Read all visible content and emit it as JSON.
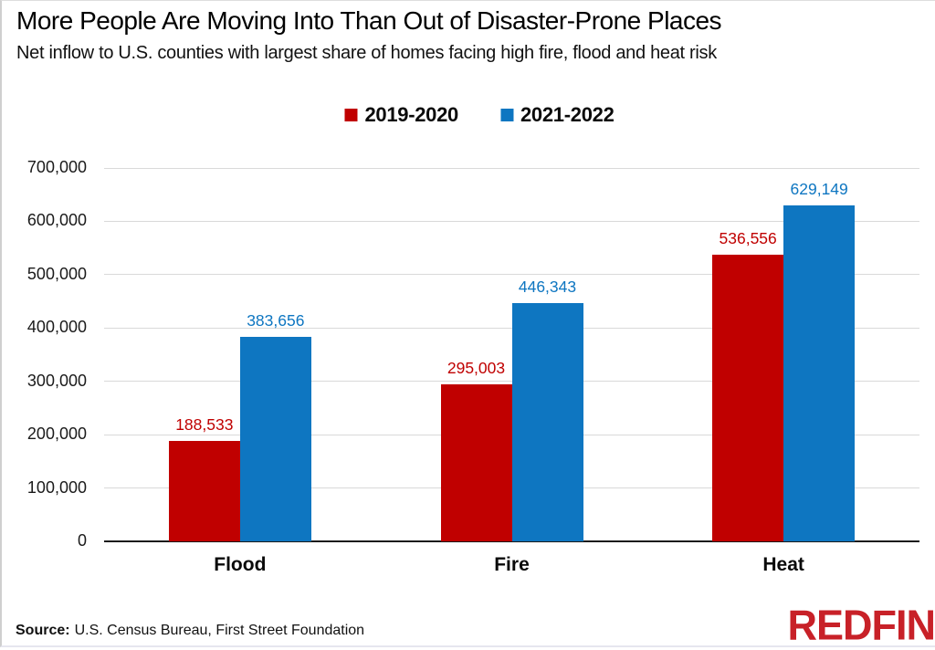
{
  "header": {
    "title": "More People Are Moving Into Than Out of Disaster-Prone Places",
    "subtitle": "Net inflow to U.S. counties with largest share of homes facing high fire, flood and heat risk"
  },
  "legend": {
    "items": [
      {
        "label": "2019-2020",
        "color": "#c00000"
      },
      {
        "label": "2021-2022",
        "color": "#0e76c1"
      }
    ]
  },
  "chart_data": {
    "type": "bar",
    "title": "More People Are Moving Into Than Out of Disaster-Prone Places",
    "categories": [
      "Flood",
      "Fire",
      "Heat"
    ],
    "series": [
      {
        "name": "2019-2020",
        "color": "#c00000",
        "values": [
          188533,
          295003,
          536556
        ],
        "value_labels": [
          "188,533",
          "295,003",
          "536,556"
        ]
      },
      {
        "name": "2021-2022",
        "color": "#0e76c1",
        "values": [
          383656,
          446343,
          629149
        ],
        "value_labels": [
          "383,656",
          "446,343",
          "629,149"
        ]
      }
    ],
    "xlabel": "",
    "ylabel": "",
    "ylim": [
      0,
      700000
    ],
    "ytick_step": 100000,
    "ytick_labels": [
      "0",
      "100,000",
      "200,000",
      "300,000",
      "400,000",
      "500,000",
      "600,000",
      "700,000"
    ],
    "grid": true,
    "legend_position": "top-center"
  },
  "footer": {
    "source_label": "Source:",
    "source_text": "U.S. Census Bureau, First Street Foundation",
    "brand": "REDFIN",
    "brand_color": "#c82128"
  },
  "colors": {
    "grid": "#d9d9d9",
    "axis": "#1a1a1a"
  }
}
